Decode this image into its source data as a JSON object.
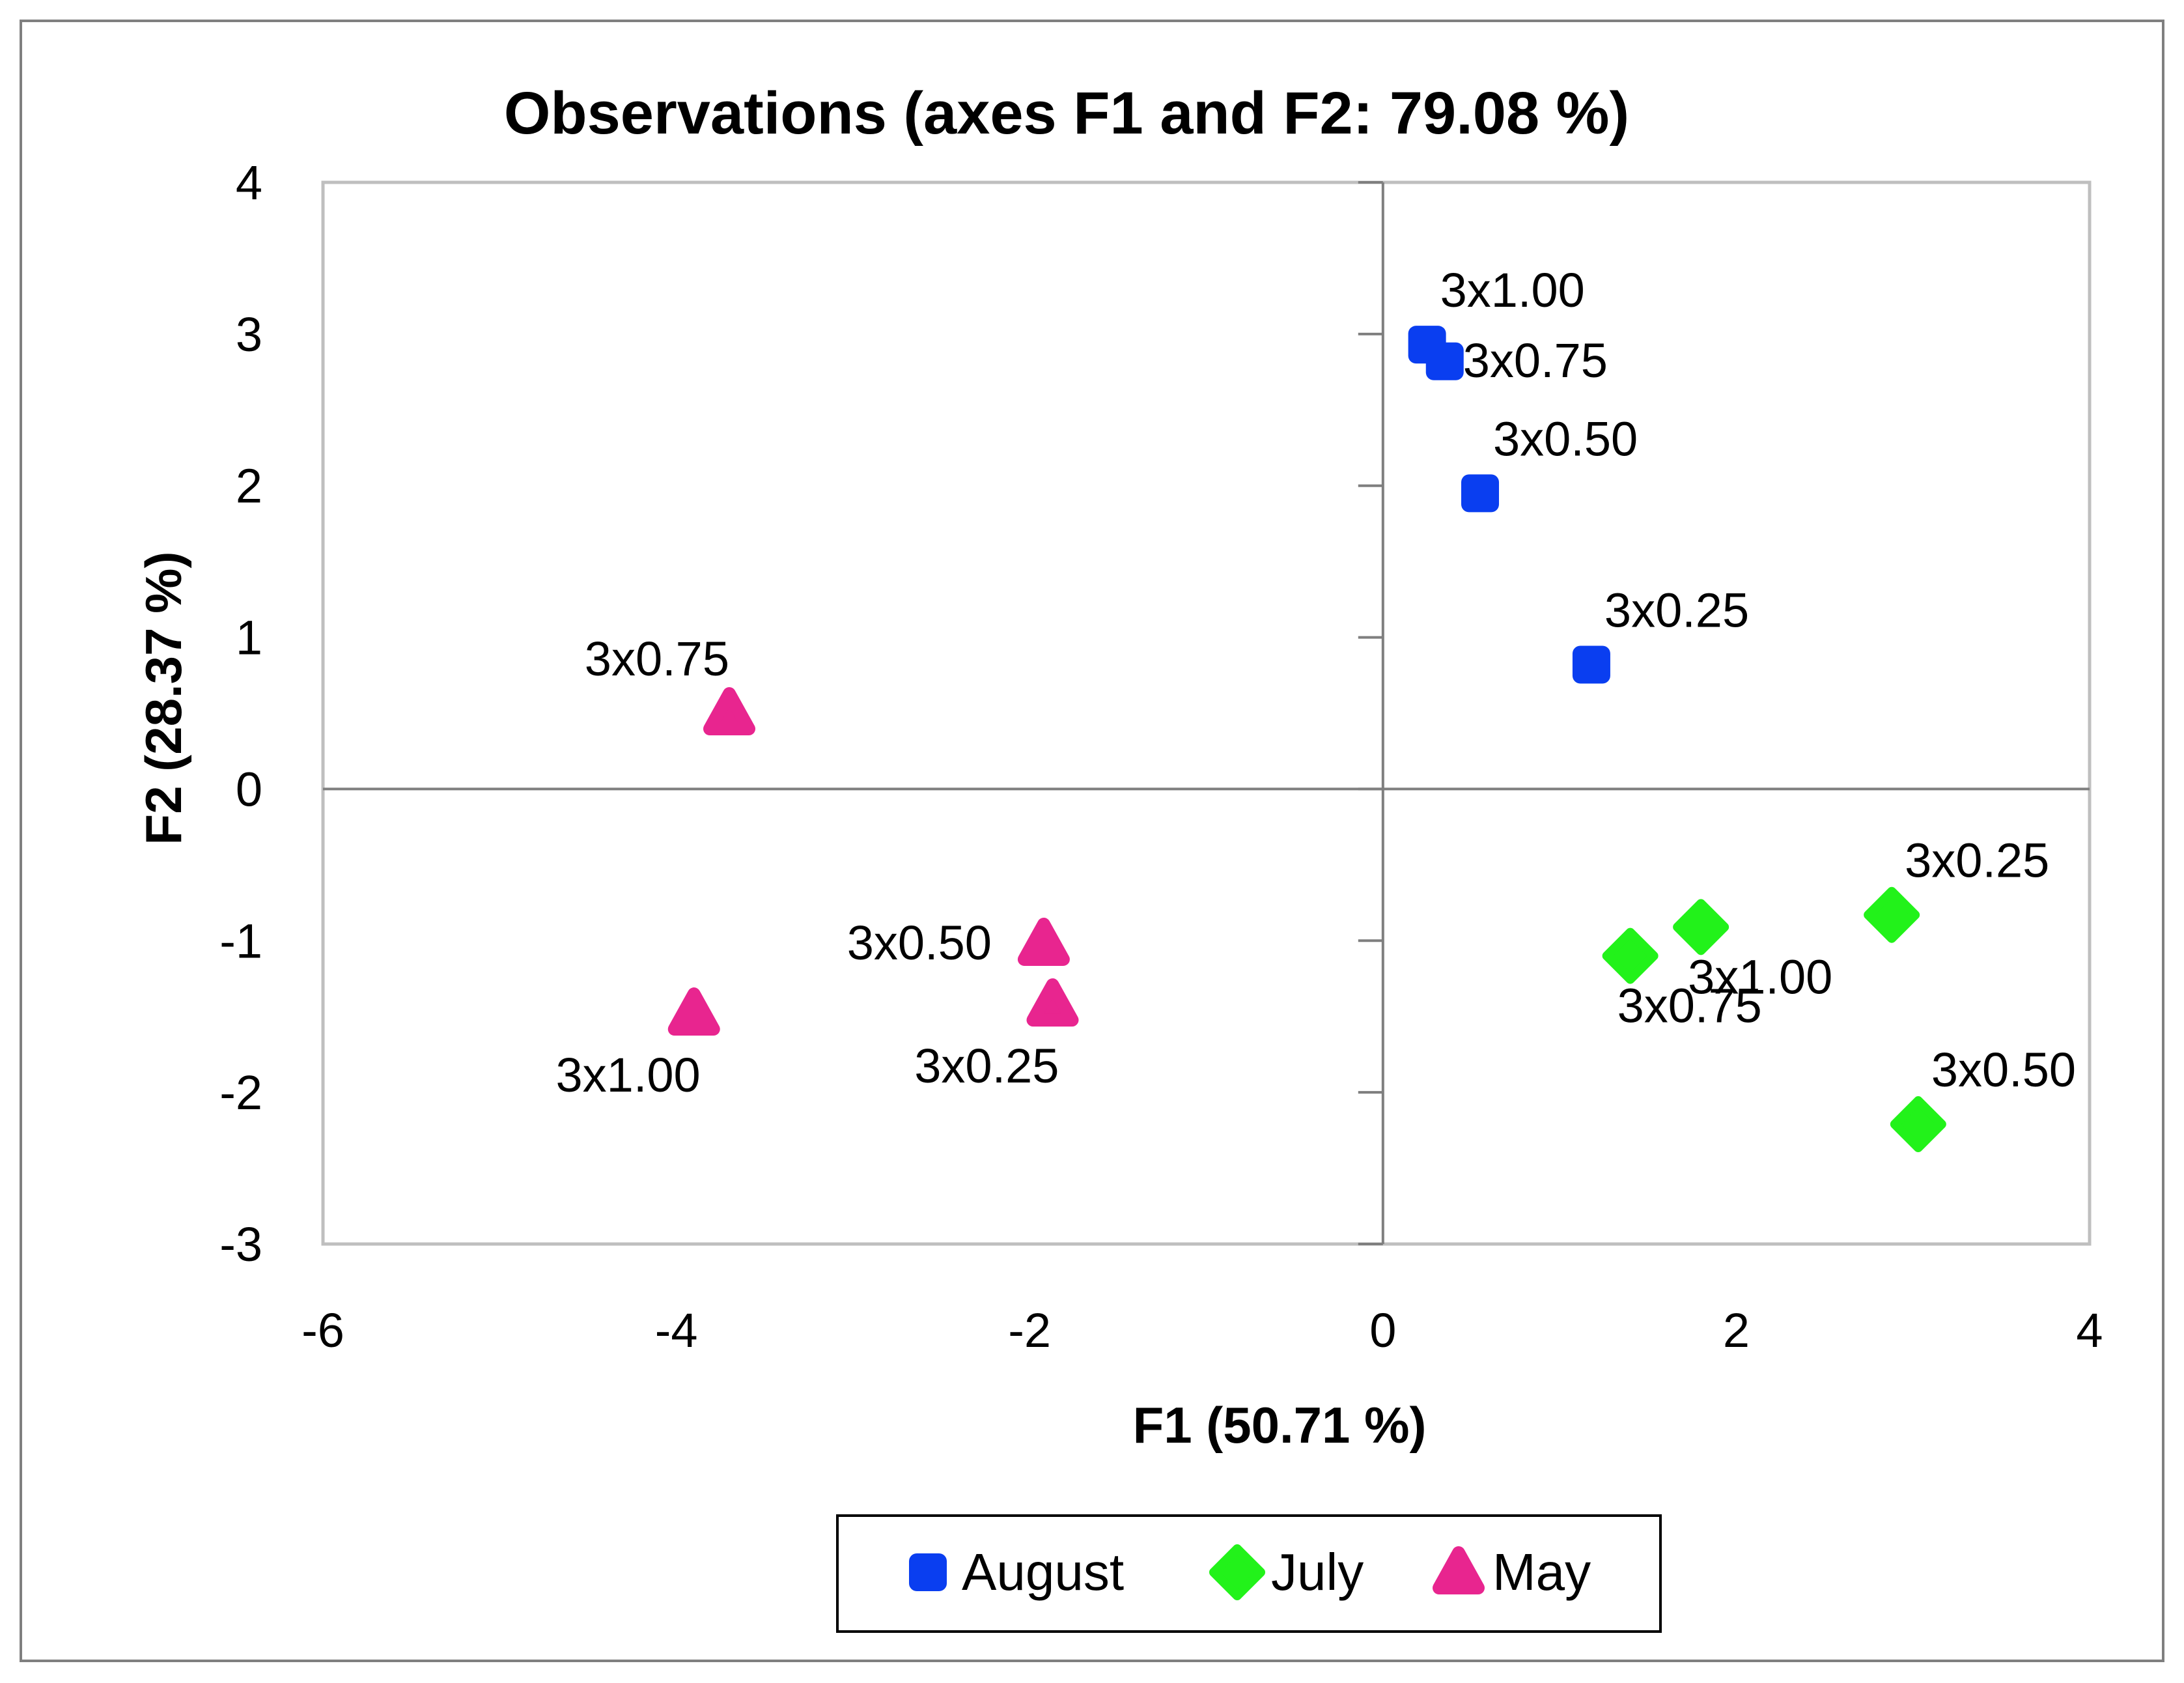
{
  "chart_data": {
    "type": "scatter",
    "title": "Observations (axes F1 and F2: 79.08 %)",
    "xlabel": "F1 (50.71 %)",
    "ylabel": "F2 (28.37 %)",
    "xlim": [
      -6,
      4
    ],
    "ylim": [
      -3,
      4
    ],
    "xticks": [
      "-6",
      "-4",
      "-2",
      "0",
      "2",
      "4"
    ],
    "yticks": [
      "-3",
      "-2",
      "-1",
      "0",
      "1",
      "2",
      "3",
      "4"
    ],
    "grid": false,
    "legend_position": "bottom",
    "series": [
      {
        "name": "August",
        "color": "#0a3ef0",
        "marker": "square",
        "points": [
          {
            "x": 0.25,
            "y": 2.93,
            "label": "3x1.00",
            "label_pos": "above-right"
          },
          {
            "x": 0.35,
            "y": 2.82,
            "label": "3x0.75",
            "label_pos": "right"
          },
          {
            "x": 0.55,
            "y": 1.95,
            "label": "3x0.50",
            "label_pos": "above-right"
          },
          {
            "x": 1.18,
            "y": 0.82,
            "label": "3x0.25",
            "label_pos": "above-right"
          }
        ]
      },
      {
        "name": "July",
        "color": "#22f21a",
        "marker": "diamond",
        "points": [
          {
            "x": 2.88,
            "y": -0.83,
            "label": "3x0.25",
            "label_pos": "above-right"
          },
          {
            "x": 1.8,
            "y": -0.91,
            "label": "3x1.00",
            "label_pos": "below-right"
          },
          {
            "x": 1.4,
            "y": -1.1,
            "label": "3x0.75",
            "label_pos": "below-right"
          },
          {
            "x": 3.03,
            "y": -2.21,
            "label": "3x0.50",
            "label_pos": "above-right"
          }
        ]
      },
      {
        "name": "May",
        "color": "#e8258f",
        "marker": "triangle",
        "points": [
          {
            "x": -3.7,
            "y": 0.5,
            "label": "3x0.75",
            "label_pos": "above-left"
          },
          {
            "x": -1.92,
            "y": -1.02,
            "label": "3x0.50",
            "label_pos": "left"
          },
          {
            "x": -1.87,
            "y": -1.42,
            "label": "3x0.25",
            "label_pos": "below-left"
          },
          {
            "x": -3.9,
            "y": -1.48,
            "label": "3x1.00",
            "label_pos": "below-left"
          }
        ]
      }
    ]
  }
}
